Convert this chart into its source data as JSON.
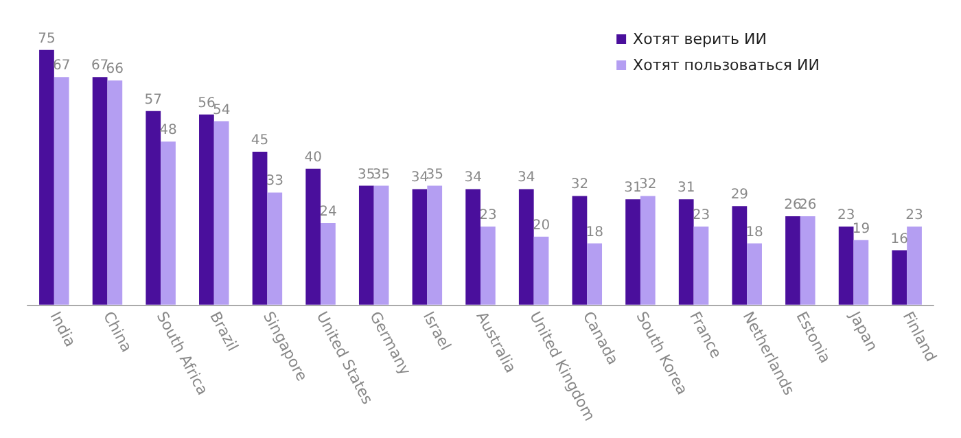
{
  "chart_data": {
    "type": "bar",
    "categories": [
      "India",
      "China",
      "South Africa",
      "Brazil",
      "Singapore",
      "United States",
      "Germany",
      "Israel",
      "Australia",
      "United Kingdom",
      "Canada",
      "South Korea",
      "France",
      "Netherlands",
      "Estonia",
      "Japan",
      "Finland"
    ],
    "series": [
      {
        "name": "Хотят верить ИИ",
        "color": "#4a0f9c",
        "values": [
          75,
          67,
          57,
          56,
          45,
          40,
          35,
          34,
          34,
          34,
          32,
          31,
          31,
          29,
          26,
          23,
          16
        ]
      },
      {
        "name": "Хотят пользоваться ИИ",
        "color": "#b49ef2",
        "values": [
          67,
          66,
          48,
          54,
          33,
          24,
          35,
          35,
          23,
          20,
          18,
          32,
          23,
          18,
          26,
          19,
          23
        ]
      }
    ],
    "data_labels": true,
    "legend": "top right"
  }
}
